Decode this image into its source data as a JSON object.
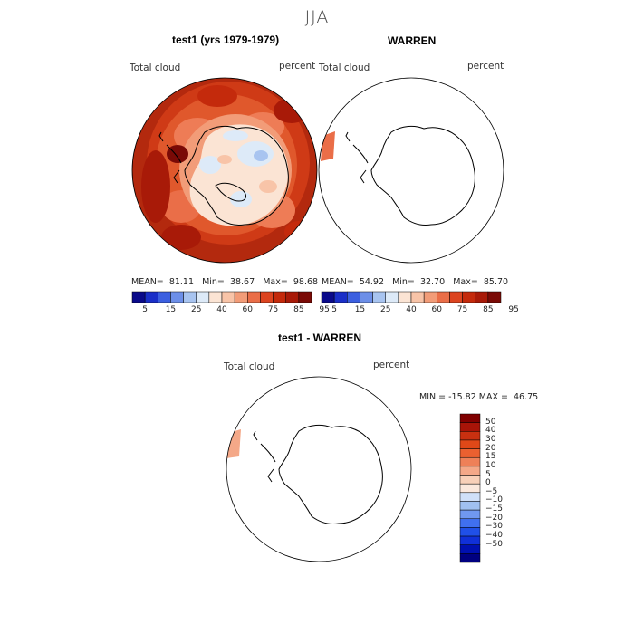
{
  "season": "JJA",
  "panel1": {
    "title": "test1 (yrs 1979-1979)",
    "variable_label": "Total cloud",
    "units": "percent",
    "stats": {
      "mean_label": "MEAN=",
      "mean": "81.11",
      "min_label": "Min=",
      "min": "38.67",
      "max_label": "Max=",
      "max": "98.68"
    }
  },
  "panel2": {
    "title": "WARREN",
    "variable_label": "Total cloud",
    "units": "percent",
    "stats": {
      "mean_label": "MEAN=",
      "mean": "54.92",
      "min_label": "Min=",
      "min": "32.70",
      "max_label": "Max=",
      "max": "85.70"
    }
  },
  "panel3": {
    "title": "test1 - WARREN",
    "variable_label": "Total cloud",
    "units": "percent",
    "range_text": "MIN = -15.82 MAX =  46.75"
  },
  "colors": {
    "abs_scale": [
      "#0a0a8a",
      "#1a2fc8",
      "#3b5fe0",
      "#6d8fe8",
      "#a8c4f0",
      "#ddeaf8",
      "#fbe4d4",
      "#f8c4a8",
      "#f29c78",
      "#ea6e48",
      "#dc4420",
      "#c42a0c",
      "#a81a08",
      "#7a0a06"
    ],
    "diff_scale": [
      "#000080",
      "#0010b0",
      "#1030d8",
      "#2050e8",
      "#4070f0",
      "#7098f0",
      "#a0c0f0",
      "#d0e0f8",
      "#fbe8dc",
      "#f8d0b8",
      "#f4a888",
      "#ee8058",
      "#ea6030",
      "#e04818",
      "#c83010",
      "#a81408",
      "#800000"
    ],
    "land_outline": "#000000"
  },
  "chart_data": [
    {
      "type": "heatmap",
      "title": "test1 (yrs 1979-1979)",
      "projection": "south polar stereographic",
      "variable": "Total cloud",
      "units": "percent",
      "mean": 81.11,
      "min": 38.67,
      "max": 98.68,
      "colorbar_ticks": [
        "5",
        "15",
        "25",
        "40",
        "60",
        "75",
        "85",
        "95"
      ],
      "colorbar_orientation": "horizontal"
    },
    {
      "type": "heatmap",
      "title": "WARREN",
      "projection": "south polar stereographic",
      "variable": "Total cloud",
      "units": "percent",
      "mean": 54.92,
      "min": 32.7,
      "max": 85.7,
      "colorbar_ticks": [
        "5",
        "15",
        "25",
        "40",
        "60",
        "75",
        "85",
        "95"
      ],
      "colorbar_orientation": "horizontal"
    },
    {
      "type": "heatmap",
      "title": "test1 - WARREN",
      "projection": "south polar stereographic",
      "variable": "Total cloud",
      "units": "percent",
      "min": -15.82,
      "max": 46.75,
      "colorbar_ticks": [
        "50",
        "40",
        "30",
        "20",
        "15",
        "10",
        "5",
        "0",
        "−5",
        "−10",
        "−15",
        "−20",
        "−30",
        "−40",
        "−50"
      ],
      "colorbar_orientation": "vertical"
    }
  ]
}
